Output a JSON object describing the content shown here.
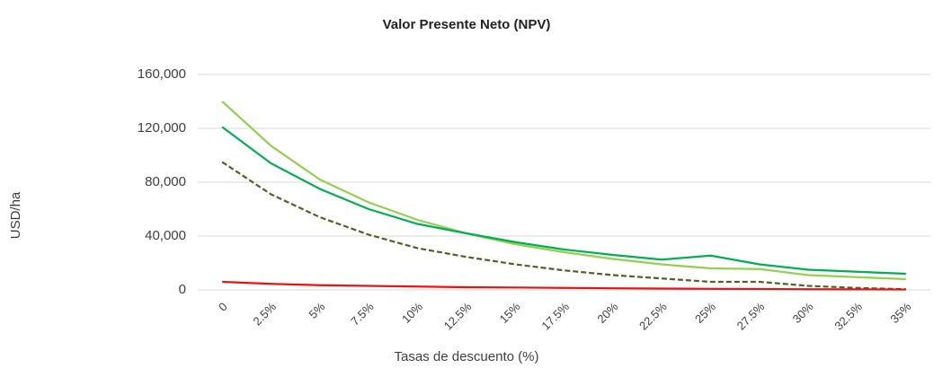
{
  "chart_data": {
    "type": "line",
    "title": "Valor Presente Neto (NPV)",
    "x_label": "Tasas de descuento (%)",
    "y_label": "USD/ha",
    "categories": [
      "0",
      "2.5%",
      "5%",
      "7.5%",
      "10%",
      "12.5%",
      "15%",
      "17.5%",
      "20%",
      "22.5%",
      "25%",
      "27.5%",
      "30%",
      "32.5%",
      "35%"
    ],
    "series": [
      {
        "color": "#92d050",
        "dash": false,
        "values": [
          140000,
          107000,
          82000,
          65000,
          52000,
          42000,
          34000,
          28000,
          23000,
          19000,
          16000,
          15500,
          11000,
          9500,
          8000
        ]
      },
      {
        "color": "#00b050",
        "dash": false,
        "values": [
          121000,
          94000,
          75000,
          60000,
          49000,
          42000,
          35500,
          30000,
          26000,
          22500,
          25500,
          19000,
          15000,
          13500,
          12000
        ]
      },
      {
        "color": "#4f6228",
        "dash": true,
        "values": [
          95000,
          71000,
          54000,
          41000,
          31000,
          24500,
          19000,
          14500,
          11000,
          8500,
          6000,
          6000,
          3000,
          1500,
          500
        ]
      },
      {
        "color": "#ee1111",
        "dash": false,
        "values": [
          6000,
          4500,
          3500,
          3000,
          2500,
          2000,
          1800,
          1500,
          1200,
          1000,
          800,
          700,
          500,
          400,
          300
        ]
      }
    ],
    "ylim": [
      0,
      160000
    ],
    "yticks": [
      0,
      {
        "value": 40000,
        "label": "40,000"
      },
      {
        "value": 80000,
        "label": "80,000"
      },
      {
        "value": 120000,
        "label": "120,000"
      },
      {
        "value": 160000,
        "label": "160,000"
      }
    ],
    "grid": true
  }
}
